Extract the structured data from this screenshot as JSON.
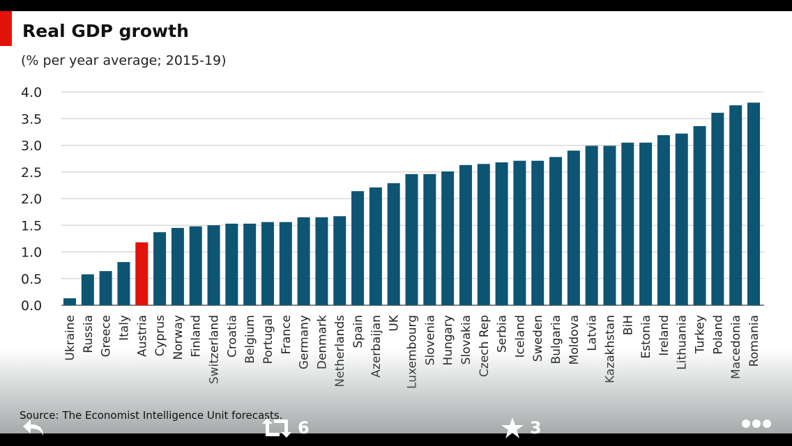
{
  "chart_data": {
    "type": "bar",
    "title": "Real GDP growth",
    "subtitle": "(% per year average; 2015-19)",
    "xlabel": "",
    "ylabel": "",
    "ylim": [
      0,
      4
    ],
    "yticks": [
      "0.0",
      "0.5",
      "1.0",
      "1.5",
      "2.0",
      "2.5",
      "3.0",
      "3.5",
      "4.0"
    ],
    "grid": true,
    "categories": [
      "Ukraine",
      "Russia",
      "Greece",
      "Italy",
      "Austria",
      "Cyprus",
      "Norway",
      "Finland",
      "Switzerland",
      "Croatia",
      "Belgium",
      "Portugal",
      "France",
      "Germany",
      "Denmark",
      "Netherlands",
      "Spain",
      "Azerbaijan",
      "UK",
      "Luxembourg",
      "Slovenia",
      "Hungary",
      "Slovakia",
      "Czech Rep",
      "Serbia",
      "Iceland",
      "Sweden",
      "Bulgaria",
      "Moldova",
      "Latvia",
      "Kazakhstan",
      "BiH",
      "Estonia",
      "Ireland",
      "Lithuania",
      "Turkey",
      "Poland",
      "Macedonia",
      "Romania"
    ],
    "values": [
      0.13,
      0.58,
      0.64,
      0.81,
      1.18,
      1.37,
      1.45,
      1.48,
      1.5,
      1.53,
      1.53,
      1.56,
      1.56,
      1.65,
      1.65,
      1.67,
      2.14,
      2.21,
      2.29,
      2.46,
      2.46,
      2.51,
      2.63,
      2.65,
      2.68,
      2.71,
      2.71,
      2.78,
      2.9,
      2.99,
      2.99,
      3.05,
      3.05,
      3.19,
      3.22,
      3.36,
      3.61,
      3.75,
      3.8
    ],
    "highlight": "Austria",
    "source": "Source: The Economist Intelligence Unit forecasts."
  },
  "colors": {
    "bar": "#0e5473",
    "highlight": "#e3120b",
    "grid": "#c8c8c8"
  },
  "actions": {
    "retweets": "6",
    "likes": "3"
  }
}
